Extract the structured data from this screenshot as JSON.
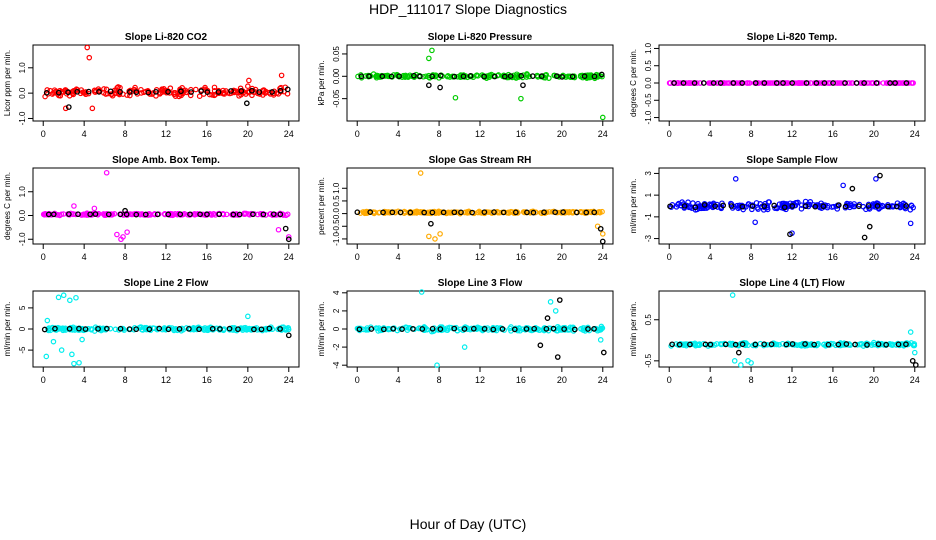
{
  "figure": {
    "title": "HDP_111017  Slope Diagnostics",
    "xlabel": "Hour of Day (UTC)"
  },
  "chart_data": [
    {
      "type": "scatter",
      "title": "Slope Li-820 CO2",
      "ylabel": "Licor ppm per min.",
      "ylim": [
        -1.1,
        1.9
      ],
      "yticks": [
        -1.0,
        0.0,
        1.0
      ],
      "ytick_labels": [
        "-1.0",
        "0.0",
        "1.0"
      ],
      "xlim": [
        -1,
        25
      ],
      "xticks": [
        0,
        4,
        8,
        12,
        16,
        20,
        24
      ],
      "xtick_labels": [
        "0",
        "4",
        "8",
        "12",
        "16",
        "20",
        "24"
      ],
      "color": "#ff0000",
      "center": 0.05,
      "spread": 0.25,
      "outliers": [
        [
          4.3,
          1.8
        ],
        [
          4.5,
          1.4
        ],
        [
          4.8,
          -0.6
        ],
        [
          2.2,
          -0.6
        ],
        [
          20.1,
          0.5
        ],
        [
          23.3,
          0.7
        ]
      ],
      "black_outliers": [
        [
          2.5,
          -0.55
        ],
        [
          19.9,
          -0.4
        ],
        [
          23.9,
          0.15
        ]
      ]
    },
    {
      "type": "scatter",
      "title": "Slope Li-820 Pressure",
      "ylabel": "kPa per min.",
      "ylim": [
        -0.1,
        0.07
      ],
      "yticks": [
        -0.05,
        0.0,
        0.05
      ],
      "ytick_labels": [
        "-0.05",
        "0.00",
        "0.05"
      ],
      "xlim": [
        -1,
        25
      ],
      "xticks": [
        0,
        4,
        8,
        12,
        16,
        20,
        24
      ],
      "xtick_labels": [
        "0",
        "4",
        "8",
        "12",
        "16",
        "20",
        "24"
      ],
      "color": "#00cc00",
      "center": 0.0,
      "spread": 0.006,
      "outliers": [
        [
          7.3,
          0.058
        ],
        [
          16.0,
          -0.05
        ],
        [
          24.0,
          -0.092
        ],
        [
          9.6,
          -0.048
        ],
        [
          7.0,
          0.04
        ]
      ],
      "black_outliers": [
        [
          7.0,
          -0.02
        ],
        [
          8.1,
          -0.025
        ],
        [
          16.2,
          -0.02
        ],
        [
          23.9,
          0.004
        ]
      ]
    },
    {
      "type": "scatter",
      "title": "Slope Li-820 Temp.",
      "ylabel": "degrees C per min.",
      "ylim": [
        -1.1,
        1.1
      ],
      "yticks": [
        -1.0,
        -0.5,
        0.0,
        0.5,
        1.0
      ],
      "ytick_labels": [
        "-1.0",
        "-0.5",
        "0.0",
        "0.5",
        "1.0"
      ],
      "xlim": [
        -1,
        25
      ],
      "xticks": [
        0,
        4,
        8,
        12,
        16,
        20,
        24
      ],
      "xtick_labels": [
        "0",
        "4",
        "8",
        "12",
        "16",
        "20",
        "24"
      ],
      "color": "#ff00ff",
      "center": 0.0,
      "spread": 0.0,
      "outliers": [],
      "black_outliers": []
    },
    {
      "type": "scatter",
      "title": "Slope Amb. Box Temp.",
      "ylabel": "degrees C per min.",
      "ylim": [
        -1.2,
        2.0
      ],
      "yticks": [
        -1.0,
        0.0,
        1.0
      ],
      "ytick_labels": [
        "-1.0",
        "0.0",
        "1.0"
      ],
      "xlim": [
        -1,
        25
      ],
      "xticks": [
        0,
        4,
        8,
        12,
        16,
        20,
        24
      ],
      "xtick_labels": [
        "0",
        "4",
        "8",
        "12",
        "16",
        "20",
        "24"
      ],
      "color": "#ff00ff",
      "center": 0.05,
      "spread": 0.06,
      "outliers": [
        [
          6.2,
          1.8
        ],
        [
          7.2,
          -0.8
        ],
        [
          7.8,
          -0.9
        ],
        [
          8.2,
          -0.7
        ],
        [
          7.6,
          -1.0
        ],
        [
          23.0,
          -0.6
        ],
        [
          24.0,
          -0.9
        ],
        [
          3.0,
          0.4
        ],
        [
          5.0,
          0.3
        ]
      ],
      "black_outliers": [
        [
          24.0,
          -1.0
        ],
        [
          23.7,
          -0.55
        ],
        [
          8.0,
          0.2
        ]
      ]
    },
    {
      "type": "scatter",
      "title": "Slope Gas Stream RH",
      "ylabel": "percent per min.",
      "ylim": [
        -1.2,
        1.8
      ],
      "yticks": [
        -1.0,
        -0.5,
        0.0,
        0.5,
        1.0
      ],
      "ytick_labels": [
        "-1.0",
        "-0.5",
        "0.0",
        "0.5",
        "1.0"
      ],
      "xlim": [
        -1,
        25
      ],
      "xticks": [
        0,
        4,
        8,
        12,
        16,
        20,
        24
      ],
      "xtick_labels": [
        "0",
        "4",
        "8",
        "12",
        "16",
        "20",
        "24"
      ],
      "color": "#ffaa00",
      "center": 0.05,
      "spread": 0.06,
      "outliers": [
        [
          6.2,
          1.6
        ],
        [
          7.0,
          -0.9
        ],
        [
          7.6,
          -1.0
        ],
        [
          8.1,
          -0.8
        ],
        [
          24.0,
          -0.8
        ],
        [
          23.5,
          -0.5
        ]
      ],
      "black_outliers": [
        [
          24.0,
          -1.1
        ],
        [
          7.2,
          -0.4
        ],
        [
          23.8,
          -0.6
        ]
      ]
    },
    {
      "type": "scatter",
      "title": "Slope Sample Flow",
      "ylabel": "ml/min per min.",
      "ylim": [
        -3.5,
        3.5
      ],
      "yticks": [
        -3,
        -1,
        1,
        3
      ],
      "ytick_labels": [
        "-3",
        "-1",
        "1",
        "3"
      ],
      "xlim": [
        -1,
        25
      ],
      "xticks": [
        0,
        4,
        8,
        12,
        16,
        20,
        24
      ],
      "xtick_labels": [
        "0",
        "4",
        "8",
        "12",
        "16",
        "20",
        "24"
      ],
      "color": "#0000ff",
      "center": 0.0,
      "spread": 0.5,
      "outliers": [
        [
          6.5,
          2.5
        ],
        [
          17.0,
          1.9
        ],
        [
          20.2,
          2.5
        ],
        [
          12.0,
          -2.5
        ],
        [
          23.6,
          -1.6
        ],
        [
          8.4,
          -1.5
        ]
      ],
      "black_outliers": [
        [
          17.9,
          1.6
        ],
        [
          19.1,
          -2.9
        ],
        [
          19.6,
          -1.9
        ],
        [
          11.8,
          -2.6
        ],
        [
          20.6,
          2.8
        ]
      ]
    },
    {
      "type": "scatter",
      "title": "Slope Line 2 Flow",
      "ylabel": "ml/min per min.",
      "ylim": [
        -9,
        9
      ],
      "yticks": [
        -5,
        0,
        5
      ],
      "ytick_labels": [
        "-5",
        "0",
        "5"
      ],
      "xlim": [
        -1,
        25
      ],
      "xticks": [
        0,
        4,
        8,
        12,
        16,
        20,
        24
      ],
      "xtick_labels": [
        "0",
        "4",
        "8",
        "12",
        "16",
        "20",
        "24"
      ],
      "color": "#00eeee",
      "center": 0.0,
      "spread": 0.6,
      "outliers": [
        [
          1.5,
          7.5
        ],
        [
          2.0,
          8.0
        ],
        [
          2.6,
          6.8
        ],
        [
          3.2,
          7.4
        ],
        [
          0.3,
          -6.5
        ],
        [
          1.0,
          -3.0
        ],
        [
          1.8,
          -5.0
        ],
        [
          2.8,
          -6.0
        ],
        [
          3.5,
          -8.0
        ],
        [
          3.8,
          -2.5
        ],
        [
          20.0,
          3.0
        ],
        [
          0.4,
          2.0
        ],
        [
          3.0,
          -8.2
        ]
      ],
      "black_outliers": [
        [
          24.0,
          -1.5
        ]
      ]
    },
    {
      "type": "scatter",
      "title": "Slope Line 3 Flow",
      "ylabel": "ml/min per min.",
      "ylim": [
        -4.2,
        4.2
      ],
      "yticks": [
        -4,
        -2,
        0,
        2,
        4
      ],
      "ytick_labels": [
        "-4",
        "-2",
        "0",
        "2",
        "4"
      ],
      "xlim": [
        -1,
        25
      ],
      "xticks": [
        0,
        4,
        8,
        12,
        16,
        20,
        24
      ],
      "xtick_labels": [
        "0",
        "4",
        "8",
        "12",
        "16",
        "20",
        "24"
      ],
      "color": "#00eeee",
      "center": 0.0,
      "spread": 0.35,
      "outliers": [
        [
          6.3,
          4.1
        ],
        [
          7.8,
          -4.0
        ],
        [
          18.9,
          3.0
        ],
        [
          19.4,
          2.0
        ],
        [
          10.5,
          -2.0
        ],
        [
          23.8,
          -1.2
        ]
      ],
      "black_outliers": [
        [
          19.8,
          3.2
        ],
        [
          19.6,
          -3.1
        ],
        [
          17.9,
          -1.8
        ],
        [
          24.1,
          -2.6
        ],
        [
          18.6,
          1.2
        ]
      ]
    },
    {
      "type": "scatter",
      "title": "Slope Line 4 (LT) Flow",
      "ylabel": "ml/min per min.",
      "ylim": [
        -0.65,
        1.2
      ],
      "yticks": [
        -0.5,
        0.5
      ],
      "ytick_labels": [
        "-0.5",
        "0.5"
      ],
      "xlim": [
        -1,
        25
      ],
      "xticks": [
        0,
        4,
        8,
        12,
        16,
        20,
        24
      ],
      "xtick_labels": [
        "0",
        "4",
        "8",
        "12",
        "16",
        "20",
        "24"
      ],
      "color": "#00eeee",
      "center": -0.1,
      "spread": 0.05,
      "outliers": [
        [
          6.2,
          1.1
        ],
        [
          6.4,
          -0.5
        ],
        [
          7.0,
          -0.6
        ],
        [
          7.7,
          -0.5
        ],
        [
          8.0,
          -0.55
        ],
        [
          23.6,
          0.2
        ],
        [
          24.0,
          -0.3
        ]
      ],
      "black_outliers": [
        [
          23.8,
          -0.5
        ],
        [
          24.1,
          -0.6
        ],
        [
          6.8,
          -0.3
        ]
      ]
    }
  ]
}
